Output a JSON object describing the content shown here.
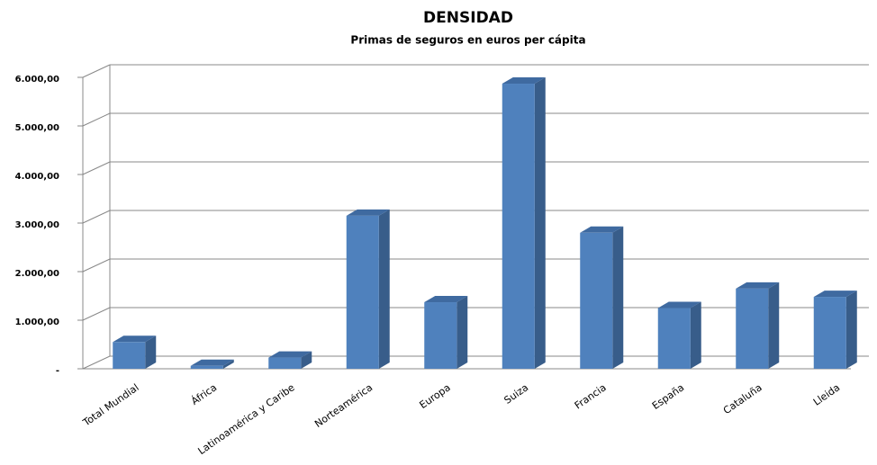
{
  "chart_data": {
    "type": "bar3d",
    "title": "DENSIDAD",
    "subtitle": "Primas de seguros en euros per cápita",
    "categories": [
      "Total Mundial",
      "África",
      "Latinoamérica y Caribe",
      "Norteamérica",
      "Europa",
      "Suiza",
      "Francia",
      "España",
      "Cataluña",
      "Lleida"
    ],
    "values": [
      550,
      60,
      230,
      3150,
      1370,
      5870,
      2800,
      1250,
      1650,
      1480
    ],
    "color": "#4f81bd",
    "ylim": [
      0,
      6000
    ],
    "yticks": [
      {
        "value": 0,
        "label": "-"
      },
      {
        "value": 1000,
        "label": "1.000,00"
      },
      {
        "value": 2000,
        "label": "2.000,00"
      },
      {
        "value": 3000,
        "label": "3.000,00"
      },
      {
        "value": 4000,
        "label": "4.000,00"
      },
      {
        "value": 5000,
        "label": "5.000,00"
      },
      {
        "value": 6000,
        "label": "6.000,00"
      }
    ],
    "grid": true
  }
}
